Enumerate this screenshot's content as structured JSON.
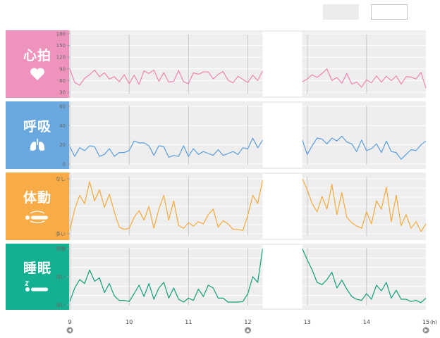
{
  "header": {
    "button_a_label": "",
    "button_b_label": ""
  },
  "panels": [
    {
      "id": "heart",
      "label": "心拍",
      "icon": "heart-icon",
      "color": "#ee93bd",
      "line_color": "#ee83b2"
    },
    {
      "id": "breath",
      "label": "呼吸",
      "icon": "lungs-icon",
      "color": "#6aa9e0",
      "line_color": "#5a9ddc"
    },
    {
      "id": "motion",
      "label": "体動",
      "icon": "body-motion-icon",
      "color": "#f7ac48",
      "line_color": "#f4a93c"
    },
    {
      "id": "sleep",
      "label": "睡眠",
      "icon": "sleeping-person-icon",
      "color": "#13b192",
      "line_color": "#129e7a"
    }
  ],
  "chart_data": [
    {
      "type": "line",
      "name": "heart",
      "ylim": [
        30,
        180
      ],
      "yticks": [
        "180",
        "150",
        "120",
        "90",
        "60",
        "30"
      ],
      "x": [
        9.0,
        9.0833,
        9.1667,
        9.25,
        9.3333,
        9.4167,
        9.5,
        9.5833,
        9.6667,
        9.75,
        9.8333,
        9.9167,
        10.0,
        10.0833,
        10.1667,
        10.25,
        10.3333,
        10.4167,
        10.5,
        10.5833,
        10.6667,
        10.75,
        10.8333,
        10.9167,
        11.0,
        11.0833,
        11.1667,
        11.25,
        11.3333,
        11.4167,
        11.5,
        11.5833,
        11.6667,
        11.75,
        11.8333,
        11.9167,
        12.0,
        12.0833,
        12.1667,
        12.25,
        12.9167,
        13.0,
        13.0833,
        13.1667,
        13.25,
        13.3333,
        13.4167,
        13.5,
        13.5833,
        13.6667,
        13.75,
        13.8333,
        13.9167,
        14.0,
        14.0833,
        14.1667,
        14.25,
        14.3333,
        14.4167,
        14.5,
        14.5833,
        14.6667,
        14.75,
        14.8333,
        14.9167,
        15.0
      ],
      "values": [
        90,
        55,
        48,
        66,
        75,
        87,
        70,
        80,
        64,
        70,
        57,
        75,
        52,
        74,
        50,
        85,
        78,
        87,
        58,
        80,
        56,
        58,
        86,
        57,
        52,
        80,
        76,
        82,
        82,
        64,
        76,
        83,
        61,
        54,
        71,
        63,
        55,
        74,
        60,
        85,
        57,
        64,
        75,
        68,
        78,
        90,
        60,
        68,
        53,
        78,
        51,
        56,
        43,
        62,
        54,
        72,
        56,
        71,
        60,
        72,
        51,
        70,
        69,
        64,
        81,
        41
      ]
    },
    {
      "type": "line",
      "name": "breath",
      "ylim": [
        0,
        60
      ],
      "yticks": [
        "60",
        "40",
        "20",
        "0"
      ],
      "x": [
        9.0,
        9.0833,
        9.1667,
        9.25,
        9.3333,
        9.4167,
        9.5,
        9.5833,
        9.6667,
        9.75,
        9.8333,
        9.9167,
        10.0,
        10.0833,
        10.1667,
        10.25,
        10.3333,
        10.4167,
        10.5,
        10.5833,
        10.6667,
        10.75,
        10.8333,
        10.9167,
        11.0,
        11.0833,
        11.1667,
        11.25,
        11.3333,
        11.4167,
        11.5,
        11.5833,
        11.6667,
        11.75,
        11.8333,
        11.9167,
        12.0,
        12.0833,
        12.1667,
        12.25,
        12.9167,
        13.0,
        13.0833,
        13.1667,
        13.25,
        13.3333,
        13.4167,
        13.5,
        13.5833,
        13.6667,
        13.75,
        13.8333,
        13.9167,
        14.0,
        14.0833,
        14.1667,
        14.25,
        14.3333,
        14.4167,
        14.5,
        14.5833,
        14.6667,
        14.75,
        14.8333,
        14.9167,
        15.0
      ],
      "values": [
        18,
        8,
        17,
        14,
        19,
        18,
        8,
        10,
        16,
        8,
        12,
        12,
        14,
        24,
        22,
        22,
        19,
        9,
        19,
        18,
        7,
        9,
        8,
        19,
        8,
        16,
        10,
        13,
        11,
        9,
        15,
        9,
        11,
        13,
        10,
        17,
        16,
        27,
        17,
        25,
        25,
        10,
        19,
        27,
        26,
        21,
        27,
        24,
        29,
        23,
        21,
        13,
        25,
        14,
        16,
        21,
        12,
        24,
        13,
        12,
        5,
        10,
        15,
        14,
        20,
        24
      ]
    },
    {
      "type": "line",
      "name": "motion",
      "yticks": [
        "多い",
        "なし"
      ],
      "ylim": [
        0,
        100
      ],
      "x": [
        9.0,
        9.0833,
        9.1667,
        9.25,
        9.3333,
        9.4167,
        9.5,
        9.5833,
        9.6667,
        9.75,
        9.8333,
        9.9167,
        10.0,
        10.0833,
        10.1667,
        10.25,
        10.3333,
        10.4167,
        10.5,
        10.5833,
        10.6667,
        10.75,
        10.8333,
        10.9167,
        11.0,
        11.0833,
        11.1667,
        11.25,
        11.3333,
        11.4167,
        11.5,
        11.5833,
        11.6667,
        11.75,
        11.8333,
        11.9167,
        12.0,
        12.0833,
        12.1667,
        12.25,
        12.9167,
        13.0,
        13.0833,
        13.1667,
        13.25,
        13.3333,
        13.4167,
        13.5,
        13.5833,
        13.6667,
        13.75,
        13.8333,
        13.9167,
        14.0,
        14.0833,
        14.1667,
        14.25,
        14.3333,
        14.4167,
        14.5,
        14.5833,
        14.6667,
        14.75,
        14.8333,
        14.9167,
        15.0
      ],
      "values": [
        6,
        45,
        70,
        55,
        95,
        60,
        80,
        48,
        72,
        40,
        12,
        8,
        10,
        30,
        42,
        25,
        50,
        10,
        45,
        70,
        25,
        60,
        15,
        10,
        20,
        14,
        22,
        18,
        35,
        45,
        12,
        24,
        18,
        8,
        8,
        6,
        34,
        70,
        55,
        98,
        100,
        80,
        55,
        40,
        68,
        45,
        90,
        35,
        75,
        30,
        20,
        14,
        10,
        40,
        18,
        60,
        45,
        85,
        22,
        70,
        15,
        35,
        10,
        22,
        4,
        18
      ]
    },
    {
      "type": "line",
      "name": "sleep",
      "yticks": [
        "覚醒",
        "浅い",
        "深い"
      ],
      "ylim": [
        0,
        100
      ],
      "x": [
        9.0,
        9.0833,
        9.1667,
        9.25,
        9.3333,
        9.4167,
        9.5,
        9.5833,
        9.6667,
        9.75,
        9.8333,
        9.9167,
        10.0,
        10.0833,
        10.1667,
        10.25,
        10.3333,
        10.4167,
        10.5,
        10.5833,
        10.6667,
        10.75,
        10.8333,
        10.9167,
        11.0,
        11.0833,
        11.1667,
        11.25,
        11.3333,
        11.4167,
        11.5,
        11.5833,
        11.6667,
        11.75,
        11.8333,
        11.9167,
        12.0,
        12.0833,
        12.1667,
        12.25,
        12.9167,
        13.0,
        13.0833,
        13.1667,
        13.25,
        13.3333,
        13.4167,
        13.5,
        13.5833,
        13.6667,
        13.75,
        13.8333,
        13.9167,
        14.0,
        14.0833,
        14.1667,
        14.25,
        14.3333,
        14.4167,
        14.5,
        14.5833,
        14.6667,
        14.75,
        14.8333,
        14.9167,
        15.0
      ],
      "values": [
        6,
        30,
        45,
        38,
        62,
        42,
        48,
        22,
        38,
        16,
        8,
        8,
        6,
        20,
        35,
        15,
        38,
        10,
        30,
        40,
        12,
        30,
        10,
        5,
        12,
        8,
        28,
        15,
        35,
        30,
        12,
        12,
        5,
        5,
        5,
        6,
        20,
        50,
        40,
        100,
        100,
        80,
        62,
        40,
        36,
        45,
        58,
        30,
        44,
        28,
        15,
        10,
        8,
        20,
        10,
        35,
        25,
        40,
        12,
        26,
        10,
        10,
        6,
        8,
        4,
        12
      ]
    }
  ],
  "x_axis": {
    "range": [
      9,
      15
    ],
    "ticks": [
      9,
      10,
      11,
      12,
      13,
      14,
      15
    ],
    "tick_labels": [
      "9",
      "10",
      "11",
      "12",
      "13",
      "14",
      "15"
    ],
    "unit": "(h)"
  },
  "gap": [
    12.25,
    12.9167
  ],
  "nav": {
    "prev_icon": "circle-arrow-left-icon",
    "cursor_icon": "circle-arrow-up-icon",
    "cursor_at": 12,
    "next_icon": "circle-arrow-right-icon"
  }
}
